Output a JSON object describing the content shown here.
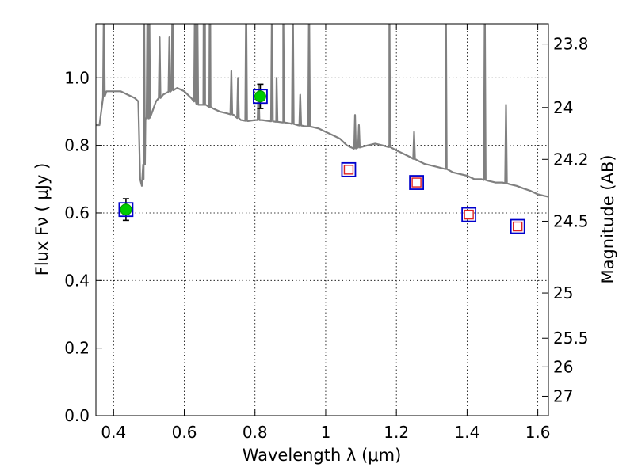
{
  "chart_data": {
    "type": "scatter",
    "xlabel": "Wavelength  λ (μm)",
    "ylabel": "Flux  Fν ( μJy )",
    "ylabel_right": "Magnitude (AB)",
    "xlim": [
      0.35,
      1.63
    ],
    "ylim": [
      0.0,
      1.16
    ],
    "grid": true,
    "x_ticks": [
      0.4,
      0.6,
      0.8,
      1.0,
      1.2,
      1.4,
      1.6
    ],
    "x_tick_labels": [
      "0.4",
      "0.6",
      "0.8",
      "1",
      "1.2",
      "1.4",
      "1.6"
    ],
    "y_ticks": [
      0.0,
      0.2,
      0.4,
      0.6,
      0.8,
      1.0
    ],
    "y_tick_labels": [
      "0.0",
      "0.2",
      "0.4",
      "0.6",
      "0.8",
      "1.0"
    ],
    "right_ticks": [
      {
        "label": "23.8",
        "flux": 1.1
      },
      {
        "label": "24",
        "flux": 0.9121
      },
      {
        "label": "24.2",
        "flux": 0.7586
      },
      {
        "label": "24.5",
        "flux": 0.5754
      },
      {
        "label": "25",
        "flux": 0.3631
      },
      {
        "label": "25.5",
        "flux": 0.2291
      },
      {
        "label": "26",
        "flux": 0.1445
      },
      {
        "label": "27",
        "flux": 0.0575
      }
    ],
    "series": [
      {
        "kind": "observed-detections",
        "color": "#00cc00",
        "points": [
          {
            "x": 0.435,
            "y": 0.61,
            "yerr": 0.032
          },
          {
            "x": 0.815,
            "y": 0.945,
            "yerr": 0.036
          }
        ]
      },
      {
        "kind": "model-photometry",
        "color": "#0000cc",
        "points": [
          {
            "x": 0.435,
            "y": 0.61
          },
          {
            "x": 0.815,
            "y": 0.945
          },
          {
            "x": 1.065,
            "y": 0.728
          },
          {
            "x": 1.257,
            "y": 0.69
          },
          {
            "x": 1.405,
            "y": 0.595
          },
          {
            "x": 1.543,
            "y": 0.56
          }
        ]
      },
      {
        "kind": "upper-limits",
        "color": "#dd2222",
        "points": [
          {
            "x": 1.065,
            "y": 0.728
          },
          {
            "x": 1.257,
            "y": 0.69
          },
          {
            "x": 1.405,
            "y": 0.595
          },
          {
            "x": 1.543,
            "y": 0.56
          }
        ]
      },
      {
        "kind": "template-sed",
        "color": "#808080",
        "continuum": [
          [
            0.35,
            0.86
          ],
          [
            0.36,
            0.86
          ],
          [
            0.365,
            0.9
          ],
          [
            0.37,
            0.94
          ],
          [
            0.38,
            0.96
          ],
          [
            0.4,
            0.96
          ],
          [
            0.42,
            0.96
          ],
          [
            0.44,
            0.95
          ],
          [
            0.46,
            0.94
          ],
          [
            0.47,
            0.93
          ],
          [
            0.475,
            0.7
          ],
          [
            0.48,
            0.68
          ],
          [
            0.485,
            0.7
          ],
          [
            0.49,
            0.88
          ],
          [
            0.5,
            0.88
          ],
          [
            0.52,
            0.93
          ],
          [
            0.54,
            0.95
          ],
          [
            0.56,
            0.96
          ],
          [
            0.58,
            0.97
          ],
          [
            0.6,
            0.96
          ],
          [
            0.62,
            0.94
          ],
          [
            0.64,
            0.92
          ],
          [
            0.66,
            0.92
          ],
          [
            0.68,
            0.91
          ],
          [
            0.7,
            0.9
          ],
          [
            0.72,
            0.895
          ],
          [
            0.74,
            0.89
          ],
          [
            0.76,
            0.875
          ],
          [
            0.78,
            0.872
          ],
          [
            0.8,
            0.875
          ],
          [
            0.82,
            0.875
          ],
          [
            0.84,
            0.872
          ],
          [
            0.86,
            0.87
          ],
          [
            0.88,
            0.868
          ],
          [
            0.9,
            0.865
          ],
          [
            0.92,
            0.86
          ],
          [
            0.94,
            0.857
          ],
          [
            0.96,
            0.855
          ],
          [
            0.98,
            0.85
          ],
          [
            1.0,
            0.84
          ],
          [
            1.02,
            0.83
          ],
          [
            1.04,
            0.82
          ],
          [
            1.06,
            0.8
          ],
          [
            1.08,
            0.79
          ],
          [
            1.1,
            0.795
          ],
          [
            1.12,
            0.8
          ],
          [
            1.14,
            0.805
          ],
          [
            1.16,
            0.8
          ],
          [
            1.18,
            0.795
          ],
          [
            1.2,
            0.785
          ],
          [
            1.22,
            0.775
          ],
          [
            1.24,
            0.765
          ],
          [
            1.26,
            0.755
          ],
          [
            1.28,
            0.745
          ],
          [
            1.3,
            0.74
          ],
          [
            1.32,
            0.735
          ],
          [
            1.34,
            0.73
          ],
          [
            1.36,
            0.72
          ],
          [
            1.38,
            0.715
          ],
          [
            1.4,
            0.71
          ],
          [
            1.42,
            0.7
          ],
          [
            1.44,
            0.7
          ],
          [
            1.46,
            0.695
          ],
          [
            1.48,
            0.69
          ],
          [
            1.5,
            0.69
          ],
          [
            1.52,
            0.685
          ],
          [
            1.54,
            0.68
          ],
          [
            1.56,
            0.672
          ],
          [
            1.58,
            0.665
          ],
          [
            1.6,
            0.655
          ],
          [
            1.62,
            0.65
          ],
          [
            1.63,
            0.648
          ]
        ],
        "lines": [
          [
            0.3727,
            1.25
          ],
          [
            0.4862,
            1.25
          ],
          [
            0.496,
            1.25
          ],
          [
            0.5008,
            1.25
          ],
          [
            0.5302,
            1.12
          ],
          [
            0.5579,
            1.12
          ],
          [
            0.5665,
            1.25
          ],
          [
            0.6302,
            1.25
          ],
          [
            0.6366,
            1.25
          ],
          [
            0.6549,
            1.25
          ],
          [
            0.6565,
            1.25
          ],
          [
            0.6585,
            1.25
          ],
          [
            0.6718,
            1.25
          ],
          [
            0.6733,
            1.25
          ],
          [
            0.733,
            1.02
          ],
          [
            0.752,
            1.0
          ],
          [
            0.775,
            1.25
          ],
          [
            0.81,
            0.98
          ],
          [
            0.848,
            1.25
          ],
          [
            0.861,
            1.0
          ],
          [
            0.88,
            1.25
          ],
          [
            0.907,
            1.25
          ],
          [
            0.928,
            0.95
          ],
          [
            0.953,
            1.25
          ],
          [
            1.083,
            0.89
          ],
          [
            1.094,
            0.86
          ],
          [
            1.18,
            1.25
          ],
          [
            1.25,
            0.84
          ],
          [
            1.34,
            1.25
          ],
          [
            1.45,
            1.25
          ],
          [
            1.51,
            0.92
          ]
        ]
      }
    ]
  }
}
